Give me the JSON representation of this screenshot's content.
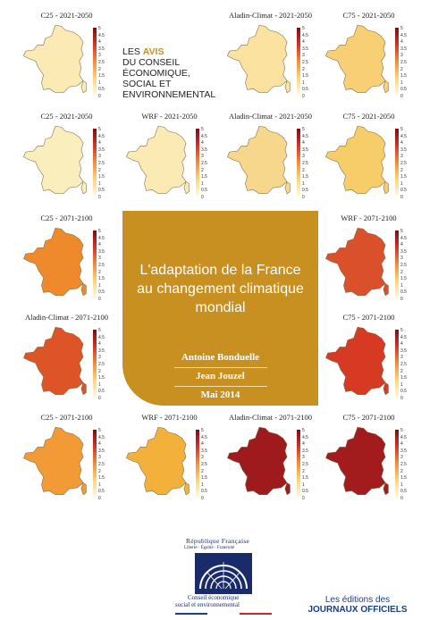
{
  "avis": {
    "line1_prefix": "LES ",
    "line1_accent": "AVIS",
    "line2": "DU CONSEIL",
    "line3": "ÉCONOMIQUE,",
    "line4": "SOCIAL ET",
    "line5": "ENVIRONNEMENTAL"
  },
  "title_box": {
    "title_line1": "L'adaptation de la France",
    "title_line2": "au changement climatique",
    "title_line3": "mondial",
    "author1": "Antoine Bonduelle",
    "author2": "Jean Jouzel",
    "date": "Mai 2014"
  },
  "footer": {
    "republique": "République Française",
    "motto": "Liberté · Égalité · Fraternité",
    "cese_line1": "Conseil économique",
    "cese_line2": "social et environnemental",
    "editions_line1": "Les éditions des",
    "editions_line2": "JOURNAUX OFFICIELS"
  },
  "scale_ticks": [
    "5",
    "4.5",
    "4",
    "3.5",
    "3",
    "2.5",
    "2",
    "1.5",
    "1",
    "0.5",
    "0"
  ],
  "colors": {
    "accent": "#c88f21",
    "scale_top": "#7a0c14",
    "scale_bottom": "#fffbe6",
    "navy": "#1a2b6b"
  },
  "maps": [
    {
      "label": "C25 - 2021-2050",
      "fill": "#fbeab4"
    },
    {
      "label": "Aladin-Climat - 2021-2050",
      "fill": "#fbe2a0"
    },
    {
      "label": "C75 - 2021-2050",
      "fill": "#f8cf74"
    },
    {
      "label": "C25 - 2021-2050",
      "fill": "#fbeebd"
    },
    {
      "label": "WRF - 2021-2050",
      "fill": "#fbeab4"
    },
    {
      "label": "Aladin-Climat - 2021-2050",
      "fill": "#f7d78c"
    },
    {
      "label": "C75 - 2021-2050",
      "fill": "#f7cd6a"
    },
    {
      "label": "C25 - 2071-2100",
      "fill": "#ee8a2c"
    },
    {
      "label": "WRF - 2071-2100",
      "fill": "#d9502a"
    },
    {
      "label": "Aladin-Climat - 2071-2100",
      "fill": "#dd5526"
    },
    {
      "label": "C75 - 2071-2100",
      "fill": "#d63a22"
    },
    {
      "label": "C25 - 2071-2100",
      "fill": "#f29a36"
    },
    {
      "label": "WRF - 2071-2100",
      "fill": "#f3b13c"
    },
    {
      "label": "Aladin-Climat - 2071-2100",
      "fill": "#9e1a1c"
    },
    {
      "label": "C75 - 2071-2100",
      "fill": "#a31b1c"
    }
  ]
}
